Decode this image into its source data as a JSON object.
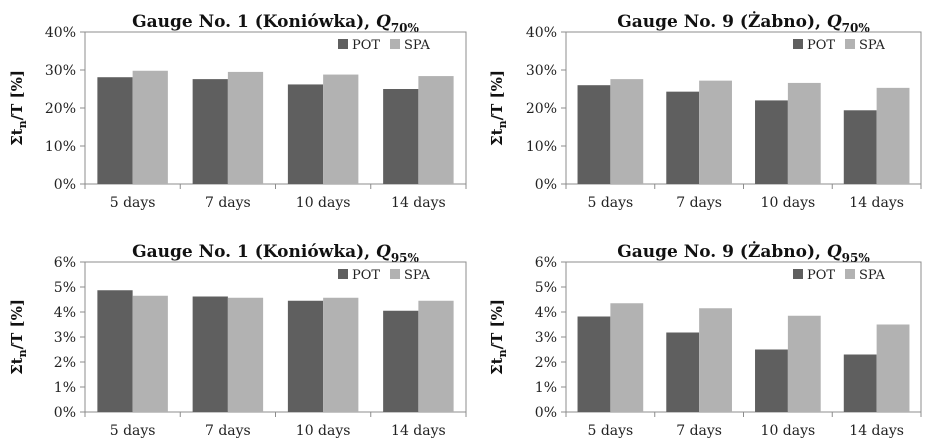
{
  "colors": {
    "POT": "#5f5f5f",
    "SPA": "#b2b2b2",
    "axis": "#8c8c8c"
  },
  "chart_data": [
    {
      "type": "bar",
      "title": "Gauge No. 1 (Koniówka), ",
      "title_q": "Q",
      "title_sub": "70%",
      "ylabel_prefix": "Σt",
      "ylabel_sub": "n",
      "ylabel_suffix": "/T [%]",
      "categories": [
        "5 days",
        "7 days",
        "10 days",
        "14 days"
      ],
      "yticks": [
        "0%",
        "10%",
        "20%",
        "30%",
        "40%"
      ],
      "ylim": [
        0,
        40
      ],
      "grid": false,
      "legend": "top-right",
      "series": [
        {
          "name": "POT",
          "values": [
            28.1,
            27.6,
            26.2,
            25.0
          ]
        },
        {
          "name": "SPA",
          "values": [
            29.8,
            29.5,
            28.8,
            28.4
          ]
        }
      ]
    },
    {
      "type": "bar",
      "title": "Gauge No. 9 (Żabno), ",
      "title_q": "Q",
      "title_sub": "70%",
      "ylabel_prefix": "Σt",
      "ylabel_sub": "n",
      "ylabel_suffix": "/T [%]",
      "categories": [
        "5 days",
        "7 days",
        "10 days",
        "14 days"
      ],
      "yticks": [
        "0%",
        "10%",
        "20%",
        "30%",
        "40%"
      ],
      "ylim": [
        0,
        40
      ],
      "grid": false,
      "legend": "top-right",
      "series": [
        {
          "name": "POT",
          "values": [
            26.0,
            24.3,
            22.0,
            19.4
          ]
        },
        {
          "name": "SPA",
          "values": [
            27.6,
            27.2,
            26.6,
            25.3
          ]
        }
      ]
    },
    {
      "type": "bar",
      "title": "Gauge No. 1 (Koniówka), ",
      "title_q": "Q",
      "title_sub": "95%",
      "ylabel_prefix": "Σt",
      "ylabel_sub": "n",
      "ylabel_suffix": "/T [%]",
      "categories": [
        "5 days",
        "7 days",
        "10 days",
        "14 days"
      ],
      "yticks": [
        "0%",
        "1%",
        "2%",
        "3%",
        "4%",
        "5%",
        "6%"
      ],
      "ylim": [
        0,
        6
      ],
      "grid": false,
      "legend": "top-right",
      "series": [
        {
          "name": "POT",
          "values": [
            4.87,
            4.62,
            4.45,
            4.05
          ]
        },
        {
          "name": "SPA",
          "values": [
            4.65,
            4.57,
            4.57,
            4.45
          ]
        }
      ]
    },
    {
      "type": "bar",
      "title": "Gauge No. 9 (Żabno), ",
      "title_q": "Q",
      "title_sub": "95%",
      "ylabel_prefix": "Σt",
      "ylabel_sub": "n",
      "ylabel_suffix": "/T [%]",
      "categories": [
        "5 days",
        "7 days",
        "10 days",
        "14 days"
      ],
      "yticks": [
        "0%",
        "1%",
        "2%",
        "3%",
        "4%",
        "5%",
        "6%"
      ],
      "ylim": [
        0,
        6
      ],
      "grid": false,
      "legend": "top-right",
      "series": [
        {
          "name": "POT",
          "values": [
            3.82,
            3.18,
            2.5,
            2.3
          ]
        },
        {
          "name": "SPA",
          "values": [
            4.35,
            4.15,
            3.85,
            3.5
          ]
        }
      ]
    }
  ]
}
